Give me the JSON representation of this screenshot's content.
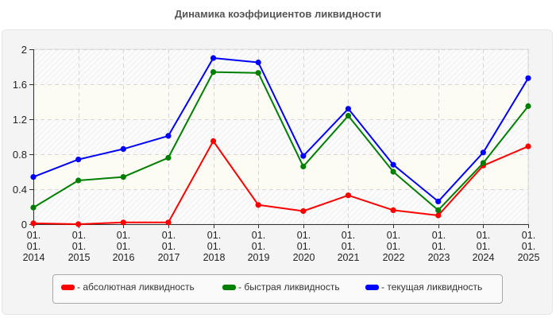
{
  "title": "Динамика коэффициентов ликвидности",
  "legend": {
    "items": [
      {
        "label": "- абсолютная ликвидность",
        "color": "#ff0000"
      },
      {
        "label": "- быстрая ликвидность",
        "color": "#008000"
      },
      {
        "label": "- текущая ликвидность",
        "color": "#0000ff"
      }
    ]
  },
  "chart_data": {
    "type": "line",
    "title": "Динамика коэффициентов ликвидности",
    "xlabel": "",
    "ylabel": "",
    "categories": [
      "01.01.2014",
      "01.01.2015",
      "01.01.2016",
      "01.01.2017",
      "01.01.2018",
      "01.01.2019",
      "01.01.2020",
      "01.01.2021",
      "01.01.2022",
      "01.01.2023",
      "01.01.2024",
      "01.01.2025"
    ],
    "x_tick_labels": [
      [
        "01.",
        "01.",
        "2014"
      ],
      [
        "01.",
        "01.",
        "2015"
      ],
      [
        "01.",
        "01.",
        "2016"
      ],
      [
        "01.",
        "01.",
        "2017"
      ],
      [
        "01.",
        "01.",
        "2018"
      ],
      [
        "01.",
        "01.",
        "2019"
      ],
      [
        "01.",
        "01.",
        "2020"
      ],
      [
        "01.",
        "01.",
        "2021"
      ],
      [
        "01.",
        "01.",
        "2022"
      ],
      [
        "01.",
        "01.",
        "2023"
      ],
      [
        "01.",
        "01.",
        "2024"
      ],
      [
        "01.",
        "01.",
        "2025"
      ]
    ],
    "y_ticks": [
      "0",
      "0.4",
      "0.8",
      "1.2",
      "1.6",
      "2"
    ],
    "ylim": [
      0,
      2
    ],
    "grid": true,
    "legend_position": "bottom",
    "series": [
      {
        "name": "абсолютная ликвидность",
        "color": "#ff0000",
        "values": [
          0.01,
          0.0,
          0.02,
          0.02,
          0.95,
          0.22,
          0.15,
          0.33,
          0.16,
          0.1,
          0.67,
          0.89
        ]
      },
      {
        "name": "быстрая ликвидность",
        "color": "#008000",
        "values": [
          0.19,
          0.5,
          0.54,
          0.76,
          1.74,
          1.73,
          0.66,
          1.24,
          0.6,
          0.16,
          0.7,
          1.35
        ]
      },
      {
        "name": "текущая ликвидность",
        "color": "#0000ff",
        "values": [
          0.54,
          0.74,
          0.86,
          1.01,
          1.9,
          1.85,
          0.78,
          1.32,
          0.68,
          0.26,
          0.82,
          1.67
        ]
      }
    ]
  }
}
